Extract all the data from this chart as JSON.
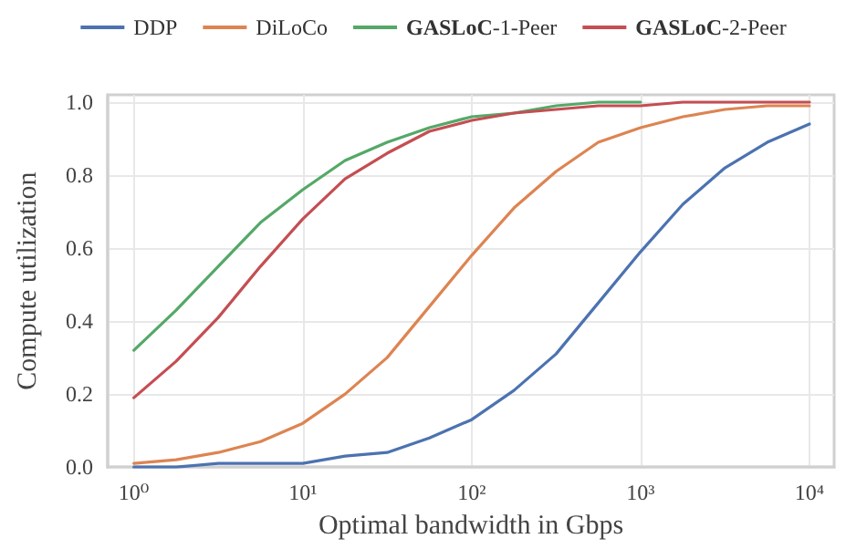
{
  "chart_data": {
    "type": "line",
    "xlabel": "Optimal bandwidth in Gbps",
    "ylabel": "Compute utilization",
    "log": "x",
    "grid": true,
    "legend": "top",
    "marker": "none",
    "line_style": "solid",
    "x": [
      1,
      1.78,
      3.16,
      5.62,
      10,
      17.8,
      31.6,
      56.2,
      100,
      178,
      316,
      562,
      1000,
      1780,
      3160,
      5620,
      10000
    ],
    "xlim": [
      0.7,
      14000
    ],
    "xticks": [
      {
        "value": 1,
        "label": "10⁰"
      },
      {
        "value": 10,
        "label": "10¹"
      },
      {
        "value": 100,
        "label": "10²"
      },
      {
        "value": 1000,
        "label": "10³"
      },
      {
        "value": 10000,
        "label": "10⁴"
      }
    ],
    "ylim": [
      0,
      1.02
    ],
    "yticks": [
      {
        "value": 0,
        "label": "0.0"
      },
      {
        "value": 0.2,
        "label": "0.2"
      },
      {
        "value": 0.4,
        "label": "0.4"
      },
      {
        "value": 0.6,
        "label": "0.6"
      },
      {
        "value": 0.8,
        "label": "0.8"
      },
      {
        "value": 1,
        "label": "1.0"
      }
    ],
    "series": [
      {
        "name": "DDP",
        "color": "#4c72b0",
        "values": [
          0.0,
          0.0,
          0.01,
          0.01,
          0.01,
          0.03,
          0.04,
          0.08,
          0.13,
          0.21,
          0.31,
          0.45,
          0.59,
          0.72,
          0.82,
          0.89,
          0.94
        ]
      },
      {
        "name": "DiLoCo",
        "color": "#dd8452",
        "values": [
          0.01,
          0.02,
          0.04,
          0.07,
          0.12,
          0.2,
          0.3,
          0.44,
          0.58,
          0.71,
          0.81,
          0.89,
          0.93,
          0.96,
          0.98,
          0.99,
          0.99
        ]
      },
      {
        "name": "GASLoC-1-Peer",
        "color": "#55a868",
        "values": [
          0.32,
          0.43,
          0.55,
          0.67,
          0.76,
          0.84,
          0.89,
          0.93,
          0.96,
          0.97,
          0.99,
          1.0,
          1.0,
          null,
          null,
          null,
          null
        ]
      },
      {
        "name": "GASLoC-2-Peer",
        "color": "#c44e52",
        "values": [
          0.19,
          0.29,
          0.41,
          0.55,
          0.68,
          0.79,
          0.86,
          0.92,
          0.95,
          0.97,
          0.98,
          0.99,
          0.99,
          1.0,
          1.0,
          1.0,
          1.0
        ]
      }
    ]
  }
}
